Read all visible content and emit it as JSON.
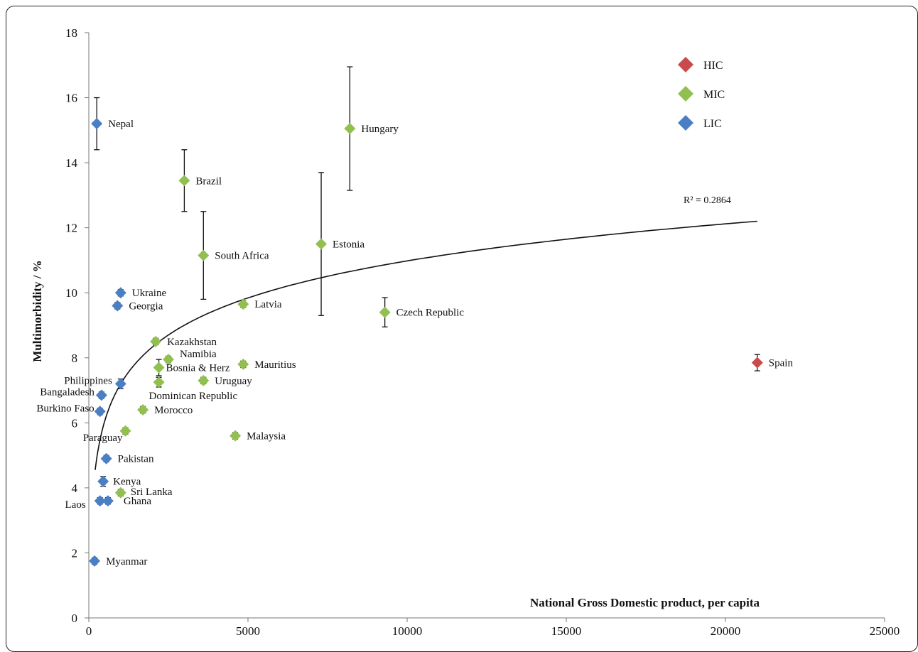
{
  "chart_data": {
    "type": "scatter",
    "title": "",
    "xlabel": "National Gross Domestic product,  per capita",
    "ylabel": "Multimorbidity  / %",
    "xlim": [
      0,
      25000
    ],
    "ylim": [
      0,
      18
    ],
    "x_ticks": [
      "0",
      "5000",
      "10000",
      "15000",
      "20000",
      "25000"
    ],
    "y_ticks": [
      "0",
      "2",
      "4",
      "6",
      "8",
      "10",
      "12",
      "14",
      "16",
      "18"
    ],
    "grid": false,
    "legend_position": "top-right",
    "trendline": {
      "type": "logarithmic",
      "r2_label": "R² = 0.2864",
      "x_from": 200,
      "x_to": 21000,
      "y_from": 4.55,
      "y_to": 12.2
    },
    "series": [
      {
        "name": "HIC",
        "color": "#c84a4a",
        "points": [
          {
            "label": "Spain",
            "x": 21000,
            "y": 7.85,
            "err": 0.25
          }
        ]
      },
      {
        "name": "MIC",
        "color": "#92c050",
        "points": [
          {
            "label": "Hungary",
            "x": 8200,
            "y": 15.05,
            "err": 1.9
          },
          {
            "label": "Brazil",
            "x": 3000,
            "y": 13.45,
            "err": 0.95
          },
          {
            "label": "Estonia",
            "x": 7300,
            "y": 11.5,
            "err": 2.2
          },
          {
            "label": "South Africa",
            "x": 3600,
            "y": 11.15,
            "err": 1.35
          },
          {
            "label": "Latvia",
            "x": 4850,
            "y": 9.65,
            "err": 0.1
          },
          {
            "label": "Czech Republic",
            "x": 9300,
            "y": 9.4,
            "err": 0.45
          },
          {
            "label": "Kazakhstan",
            "x": 2100,
            "y": 8.5,
            "err": 0.1
          },
          {
            "label": "Namibia",
            "x": 2500,
            "y": 7.95,
            "err": 0.1
          },
          {
            "label": "Mauritius",
            "x": 4850,
            "y": 7.8,
            "err": 0.1
          },
          {
            "label": "Bosnia & Herz",
            "x": 2200,
            "y": 7.7,
            "err": 0.25
          },
          {
            "label": "Uruguay",
            "x": 3600,
            "y": 7.3,
            "err": 0.1
          },
          {
            "label": "Dominican Republic",
            "x": 2200,
            "y": 7.25,
            "err": 0.15
          },
          {
            "label": "Morocco",
            "x": 1700,
            "y": 6.4,
            "err": 0.1
          },
          {
            "label": "Paraguay",
            "x": 1150,
            "y": 5.75,
            "err": 0.1
          },
          {
            "label": "Malaysia",
            "x": 4600,
            "y": 5.6,
            "err": 0.1
          },
          {
            "label": "Sri Lanka",
            "x": 1000,
            "y": 3.85,
            "err": 0.1
          }
        ]
      },
      {
        "name": "LIC",
        "color": "#4a7fc4",
        "points": [
          {
            "label": "Nepal",
            "x": 250,
            "y": 15.2,
            "err": 0.8
          },
          {
            "label": "Ukraine",
            "x": 1000,
            "y": 10.0,
            "err": 0.1
          },
          {
            "label": "Georgia",
            "x": 900,
            "y": 9.6,
            "err": 0.1
          },
          {
            "label": "Philippines",
            "x": 1000,
            "y": 7.2,
            "err": 0.15
          },
          {
            "label": "Bangaladesh",
            "x": 400,
            "y": 6.85,
            "err": 0.1
          },
          {
            "label": "Burkino Faso",
            "x": 350,
            "y": 6.35,
            "err": 0.1
          },
          {
            "label": "Pakistan",
            "x": 550,
            "y": 4.9,
            "err": 0.1
          },
          {
            "label": "Kenya",
            "x": 450,
            "y": 4.2,
            "err": 0.15
          },
          {
            "label": "Ghana",
            "x": 600,
            "y": 3.6,
            "err": 0.1
          },
          {
            "label": "Laos",
            "x": 350,
            "y": 3.6,
            "err": 0.1
          },
          {
            "label": "Myanmar",
            "x": 180,
            "y": 1.75,
            "err": 0.1
          }
        ]
      }
    ]
  }
}
